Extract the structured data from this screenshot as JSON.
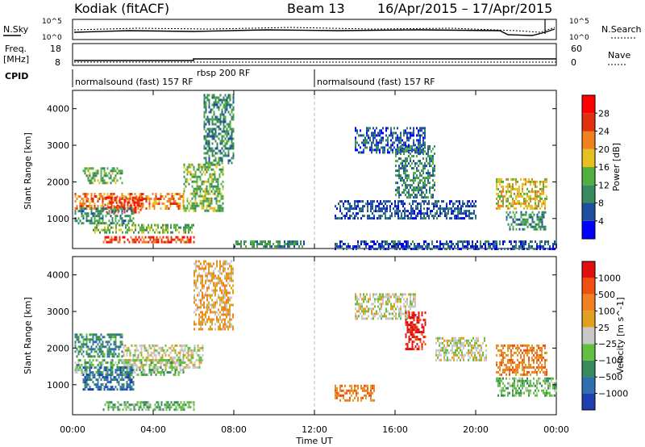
{
  "header": {
    "station": "Kodiak (fitACF)",
    "beam": "Beam 13",
    "date_range": "16/Apr/2015 – 17/Apr/2015"
  },
  "noise_panel": {
    "left_label": "N.Sky",
    "right_label": "N.Search",
    "left_ticks": [
      "10^5",
      "10^0"
    ],
    "right_ticks": [
      "10^5",
      "10^0"
    ]
  },
  "freq_panel": {
    "left_label": "Freq.",
    "left_unit": "[MHz]",
    "right_label": "Nave",
    "left_ticks": [
      "18",
      "8"
    ],
    "right_ticks": [
      "60",
      "0"
    ]
  },
  "cpid": {
    "label": "CPID",
    "segments": [
      {
        "start_hour": 0,
        "end_hour": 12,
        "text": "normalsound (fast) 157 RF"
      },
      {
        "start_hour": 6,
        "end_hour": 12,
        "text": "rbsp 200 RF"
      },
      {
        "start_hour": 12,
        "end_hour": 24,
        "text": "normalsound (fast) 157 RF"
      }
    ]
  },
  "x_axis": {
    "label": "Time UT",
    "ticks": [
      "00:00",
      "04:00",
      "08:00",
      "12:00",
      "16:00",
      "20:00",
      "00:00"
    ]
  },
  "chart_data": [
    {
      "type": "heatmap",
      "title": "Power",
      "xlabel": "Time UT",
      "ylabel": "Slant Range [km]",
      "xlim": [
        0,
        24
      ],
      "ylim": [
        180,
        4500
      ],
      "yticks": [
        1000,
        2000,
        3000,
        4000
      ],
      "colorbar": {
        "label": "Power [dB]",
        "tick_labels": [
          "4",
          "8",
          "12",
          "16",
          "20",
          "24",
          "28"
        ],
        "colors": [
          "#0000ff",
          "#1f4fa0",
          "#3a8a60",
          "#52b040",
          "#e6c020",
          "#f08020",
          "#e03010",
          "#ff0000"
        ]
      },
      "regions": [
        {
          "t0": 0.1,
          "t1": 5.5,
          "r0": 1300,
          "r1": 1700,
          "level": 5
        },
        {
          "t0": 1.5,
          "t1": 3.5,
          "r0": 1200,
          "r1": 1600,
          "level": 6
        },
        {
          "t0": 0.1,
          "t1": 3.0,
          "r0": 850,
          "r1": 1300,
          "level": 2
        },
        {
          "t0": 0.5,
          "t1": 2.5,
          "r0": 2000,
          "r1": 2400,
          "level": 3
        },
        {
          "t0": 1.0,
          "t1": 6.0,
          "r0": 600,
          "r1": 850,
          "level": 3
        },
        {
          "t0": 1.5,
          "t1": 6.0,
          "r0": 380,
          "r1": 520,
          "level": 6
        },
        {
          "t0": 5.5,
          "t1": 7.5,
          "r0": 1200,
          "r1": 2500,
          "level": 3
        },
        {
          "t0": 6.5,
          "t1": 8.0,
          "r0": 2500,
          "r1": 4400,
          "level": 2
        },
        {
          "t0": 8.0,
          "t1": 11.5,
          "r0": 250,
          "r1": 400,
          "level": 2
        },
        {
          "t0": 14.0,
          "t1": 17.5,
          "r0": 2800,
          "r1": 3500,
          "level": 1
        },
        {
          "t0": 16.0,
          "t1": 18.0,
          "r0": 1600,
          "r1": 3000,
          "level": 2
        },
        {
          "t0": 13.0,
          "t1": 20.0,
          "r0": 1000,
          "r1": 1500,
          "level": 1
        },
        {
          "t0": 21.0,
          "t1": 23.5,
          "r0": 1300,
          "r1": 2100,
          "level": 4
        },
        {
          "t0": 21.5,
          "t1": 23.5,
          "r0": 700,
          "r1": 1200,
          "level": 2
        },
        {
          "t0": 13.0,
          "t1": 24.0,
          "r0": 200,
          "r1": 400,
          "level": 1
        }
      ]
    },
    {
      "type": "heatmap",
      "title": "Velocity",
      "xlabel": "Time UT",
      "ylabel": "Slant Range [km]",
      "xlim": [
        0,
        24
      ],
      "ylim": [
        180,
        4500
      ],
      "yticks": [
        1000,
        2000,
        3000,
        4000
      ],
      "colorbar": {
        "label": "Velocity [m s^-1]",
        "tick_labels": [
          "1000",
          "500",
          "100",
          "25",
          "−25",
          "−100",
          "−500",
          "−1000"
        ],
        "colors": [
          "#1f3fb0",
          "#2f6fb0",
          "#3a8a60",
          "#62c040",
          "#c8c8c8",
          "#e0a020",
          "#f08020",
          "#f05010",
          "#e01010"
        ]
      },
      "regions": [
        {
          "t0": 0.1,
          "t1": 5.5,
          "r0": 1300,
          "r1": 1700,
          "level": 3
        },
        {
          "t0": 2.5,
          "t1": 6.5,
          "r0": 1500,
          "r1": 2100,
          "level": 4
        },
        {
          "t0": 0.5,
          "t1": 3.0,
          "r0": 900,
          "r1": 1500,
          "level": 1
        },
        {
          "t0": 0.1,
          "t1": 2.5,
          "r0": 1800,
          "r1": 2400,
          "level": 2
        },
        {
          "t0": 1.5,
          "t1": 6.0,
          "r0": 350,
          "r1": 550,
          "level": 3
        },
        {
          "t0": 6.0,
          "t1": 8.0,
          "r0": 2500,
          "r1": 4400,
          "level": 5
        },
        {
          "t0": 14.0,
          "t1": 17.0,
          "r0": 2800,
          "r1": 3500,
          "level": 4
        },
        {
          "t0": 16.5,
          "t1": 17.5,
          "r0": 2000,
          "r1": 3000,
          "level": 8
        },
        {
          "t0": 18.0,
          "t1": 20.5,
          "r0": 1700,
          "r1": 2300,
          "level": 4
        },
        {
          "t0": 21.0,
          "t1": 23.5,
          "r0": 1300,
          "r1": 2100,
          "level": 6
        },
        {
          "t0": 21.0,
          "t1": 24.0,
          "r0": 700,
          "r1": 1200,
          "level": 3
        },
        {
          "t0": 13.0,
          "t1": 15.0,
          "r0": 600,
          "r1": 1000,
          "level": 6
        }
      ]
    }
  ]
}
